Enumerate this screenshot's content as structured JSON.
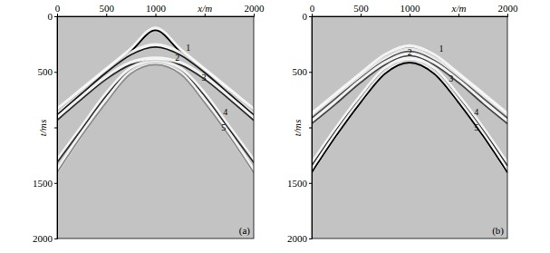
{
  "chart_data": [
    {
      "type": "line",
      "title": "(a)",
      "x": [
        0,
        250,
        500,
        750,
        1000,
        1250,
        1500,
        1750,
        2000
      ],
      "series": [
        {
          "color": "#000000",
          "values": [
            840,
            660,
            480,
            300,
            110,
            300,
            480,
            660,
            840
          ]
        },
        {
          "color": "#1a1a1a",
          "values": [
            870,
            680,
            490,
            330,
            260,
            330,
            490,
            680,
            870
          ]
        },
        {
          "color": "#2a2a2a",
          "values": [
            920,
            730,
            550,
            420,
            380,
            420,
            550,
            730,
            920
          ]
        },
        {
          "color": "#333333",
          "values": [
            1300,
            1000,
            700,
            470,
            400,
            470,
            700,
            1000,
            1300
          ]
        },
        {
          "color": "#8a8a8a",
          "values": [
            1390,
            1060,
            760,
            500,
            420,
            500,
            760,
            1060,
            1390
          ]
        }
      ],
      "annotations": [
        {
          "text": "1",
          "x": 1310,
          "y": 290
        },
        {
          "text": "2",
          "x": 1200,
          "y": 380
        },
        {
          "text": "3",
          "x": 1470,
          "y": 560
        },
        {
          "text": "4",
          "x": 1690,
          "y": 870
        },
        {
          "text": "5",
          "x": 1670,
          "y": 1010
        }
      ],
      "xlim": [
        0,
        2000
      ],
      "ylim": [
        0,
        2000
      ],
      "xticks": [
        0,
        500,
        1000,
        {
          "value": 1500,
          "label": "x/m"
        },
        2000
      ],
      "yticks": [
        0,
        500,
        {
          "value": 1000,
          "label": "t/ms"
        },
        1500,
        2000
      ],
      "grid": false
    },
    {
      "type": "line",
      "title": "(b)",
      "x": [
        0,
        250,
        500,
        750,
        1000,
        1250,
        1500,
        1750,
        2000
      ],
      "series": [
        {
          "color": "#6a6a6a",
          "values": [
            880,
            700,
            520,
            350,
            270,
            350,
            520,
            700,
            880
          ]
        },
        {
          "color": "#555555",
          "values": [
            900,
            720,
            540,
            380,
            300,
            380,
            540,
            720,
            900
          ]
        },
        {
          "color": "#444444",
          "values": [
            950,
            770,
            580,
            420,
            340,
            420,
            580,
            770,
            950
          ]
        },
        {
          "color": "#333333",
          "values": [
            1330,
            1010,
            720,
            470,
            380,
            470,
            720,
            1010,
            1330
          ]
        },
        {
          "color": "#000000",
          "values": [
            1390,
            1060,
            760,
            500,
            400,
            500,
            760,
            1060,
            1390
          ]
        }
      ],
      "annotations": [
        {
          "text": "1",
          "x": 1300,
          "y": 300
        },
        {
          "text": "2",
          "x": 980,
          "y": 330
        },
        {
          "text": "3",
          "x": 1400,
          "y": 570
        },
        {
          "text": "4",
          "x": 1660,
          "y": 870
        },
        {
          "text": "5",
          "x": 1660,
          "y": 1010
        }
      ],
      "xlim": [
        0,
        2000
      ],
      "ylim": [
        0,
        2000
      ],
      "xticks": [
        0,
        500,
        1000,
        {
          "value": 1500,
          "label": "x/m"
        },
        2000
      ],
      "yticks": [
        0,
        500,
        {
          "value": 1000,
          "label": "t/ms"
        },
        1500,
        2000
      ],
      "grid": false
    }
  ]
}
